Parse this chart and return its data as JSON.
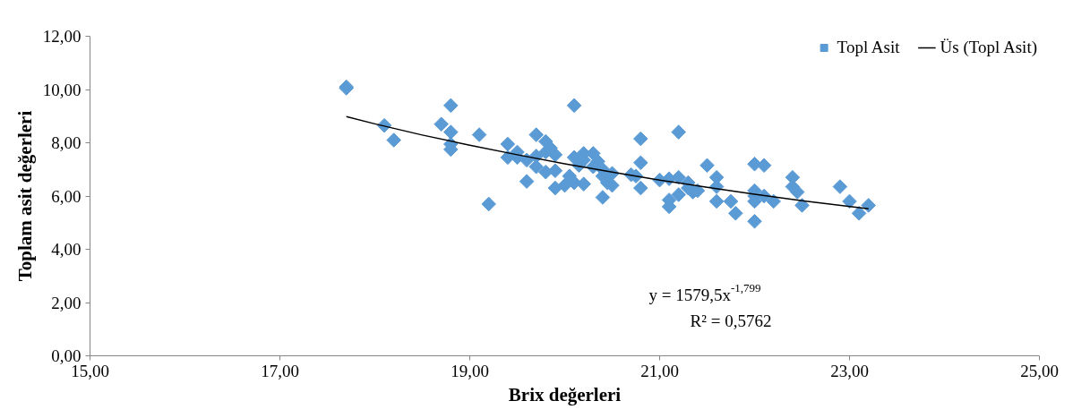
{
  "chart_data": {
    "type": "scatter",
    "xlabel": "Brix değerleri",
    "ylabel": "Toplam asit değerleri",
    "legend": "top right",
    "grid": false,
    "xlim": [
      15,
      25
    ],
    "xticks": [
      {
        "value": 15,
        "label": "15,00"
      },
      {
        "value": 17,
        "label": "17,00"
      },
      {
        "value": 19,
        "label": "19,00"
      },
      {
        "value": 21,
        "label": "21,00"
      },
      {
        "value": 23,
        "label": "23,00"
      },
      {
        "value": 25,
        "label": "25,00"
      }
    ],
    "ylim": [
      0,
      12
    ],
    "yticks": [
      {
        "value": 0,
        "label": "0,00"
      },
      {
        "value": 2,
        "label": "2,00"
      },
      {
        "value": 4,
        "label": "4,00"
      },
      {
        "value": 6,
        "label": "6,00"
      },
      {
        "value": 8,
        "label": "8,00"
      },
      {
        "value": 10,
        "label": "10,00"
      },
      {
        "value": 12,
        "label": "12,00"
      }
    ],
    "annotations": [
      "y = 1579,5x$^{-1,799}$",
      "R² = 0,5762"
    ],
    "series": [
      {
        "name": "Topl Asit",
        "color": "#5b9bd5",
        "marker": "diamond",
        "x": [
          17.7,
          17.7,
          18.1,
          18.2,
          18.7,
          18.8,
          18.8,
          18.8,
          18.8,
          19.1,
          19.2,
          19.4,
          19.4,
          19.5,
          19.5,
          19.6,
          19.6,
          19.7,
          19.7,
          19.7,
          19.8,
          19.8,
          19.8,
          19.85,
          19.9,
          19.9,
          19.9,
          20.0,
          20.05,
          20.1,
          20.1,
          20.1,
          20.15,
          20.2,
          20.2,
          20.2,
          20.3,
          20.3,
          20.35,
          20.4,
          20.4,
          20.4,
          20.45,
          20.5,
          20.5,
          20.7,
          20.8,
          20.8,
          20.8,
          20.75,
          21.0,
          21.1,
          21.1,
          21.1,
          21.2,
          21.2,
          21.2,
          21.3,
          21.3,
          21.35,
          21.4,
          21.5,
          21.6,
          21.6,
          21.6,
          21.75,
          21.8,
          22.0,
          22.0,
          22.0,
          22.0,
          22.0,
          22.1,
          22.1,
          22.2,
          22.4,
          22.4,
          22.45,
          22.5,
          22.9,
          23.0,
          23.1,
          23.2
        ],
        "values": [
          10.1,
          10.05,
          8.65,
          8.1,
          8.7,
          9.4,
          8.4,
          7.95,
          7.75,
          8.3,
          5.7,
          7.95,
          7.45,
          7.65,
          7.45,
          7.35,
          6.55,
          8.3,
          7.5,
          7.1,
          8.05,
          7.65,
          6.9,
          7.8,
          7.55,
          6.95,
          6.3,
          6.4,
          6.75,
          9.4,
          7.45,
          6.5,
          7.15,
          7.6,
          7.35,
          6.45,
          7.6,
          7.1,
          7.3,
          7.0,
          6.75,
          5.95,
          6.5,
          6.85,
          6.4,
          6.8,
          8.15,
          7.25,
          6.3,
          6.75,
          6.6,
          6.65,
          5.85,
          5.6,
          8.4,
          6.7,
          6.05,
          6.5,
          6.3,
          6.15,
          6.2,
          7.15,
          6.7,
          6.35,
          5.8,
          5.8,
          5.35,
          7.2,
          6.2,
          6.0,
          5.8,
          5.05,
          7.15,
          6.0,
          5.8,
          6.7,
          6.35,
          6.15,
          5.65,
          6.35,
          5.8,
          5.35,
          5.65
        ]
      },
      {
        "name": "Üs (Topl Asit)",
        "color": "#000000",
        "type": "line",
        "x": [
          17.7,
          18,
          18.5,
          19,
          19.5,
          20,
          20.5,
          21,
          21.5,
          22,
          22.5,
          23.2
        ],
        "values": [
          8.98,
          8.71,
          8.29,
          7.91,
          7.55,
          7.21,
          6.9,
          6.6,
          6.33,
          6.07,
          5.82,
          5.52
        ]
      }
    ]
  }
}
